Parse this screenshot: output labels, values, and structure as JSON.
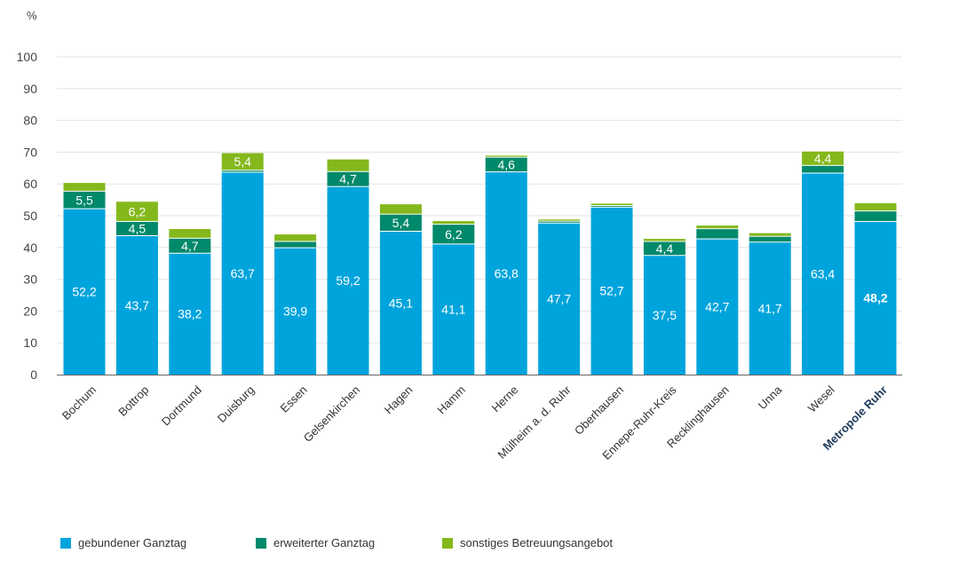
{
  "chart_data": {
    "type": "bar",
    "stacked": true,
    "unit_label": "%",
    "ylim": [
      0,
      100
    ],
    "yticks": [
      0,
      10,
      20,
      30,
      40,
      50,
      60,
      70,
      80,
      90,
      100
    ],
    "grid": true,
    "legend_position": "bottom-left",
    "categories": [
      "Bochum",
      "Bottrop",
      "Dortmund",
      "Duisburg",
      "Essen",
      "Gelsenkirchen",
      "Hagen",
      "Hamm",
      "Herne",
      "Mülheim a. d. Ruhr",
      "Oberhausen",
      "Ennepe-Ruhr-Kreis",
      "Recklinghausen",
      "Unna",
      "Wesel",
      "Metropole Ruhr"
    ],
    "highlight_category": "Metropole Ruhr",
    "series": [
      {
        "name": "gebundener Ganztag",
        "color": "#00a4dc",
        "values": [
          52.2,
          43.7,
          38.2,
          63.7,
          39.9,
          59.2,
          45.1,
          41.1,
          63.8,
          47.7,
          52.7,
          37.5,
          42.7,
          41.7,
          63.4,
          48.2
        ],
        "labels": [
          "52,2",
          "43,7",
          "38,2",
          "63,7",
          "39,9",
          "59,2",
          "45,1",
          "41,1",
          "63,8",
          "47,7",
          "52,7",
          "37,5",
          "42,7",
          "41,7",
          "63,4",
          "48,2"
        ]
      },
      {
        "name": "erweiterter Ganztag",
        "color": "#00896a",
        "values": [
          5.5,
          4.5,
          4.7,
          0.6,
          2.0,
          4.7,
          5.4,
          6.2,
          4.6,
          0.6,
          0.5,
          4.4,
          3.2,
          1.8,
          2.4,
          3.3
        ],
        "labels": [
          "5,5",
          "4,5",
          "4,7",
          "",
          "",
          "4,7",
          "5,4",
          "6,2",
          "4,6",
          "",
          "",
          "4,4",
          "",
          "",
          "",
          ""
        ]
      },
      {
        "name": "sonstiges Betreuungsangebot",
        "color": "#84b81c",
        "values": [
          2.6,
          6.2,
          2.9,
          5.4,
          2.2,
          3.8,
          3.1,
          1.0,
          0.5,
          0.5,
          0.6,
          0.8,
          1.0,
          1.0,
          4.4,
          2.4
        ],
        "labels": [
          "",
          "6,2",
          "",
          "5,4",
          "",
          "",
          "",
          "",
          "",
          "",
          "",
          "",
          "",
          "",
          "4,4",
          ""
        ]
      }
    ]
  }
}
